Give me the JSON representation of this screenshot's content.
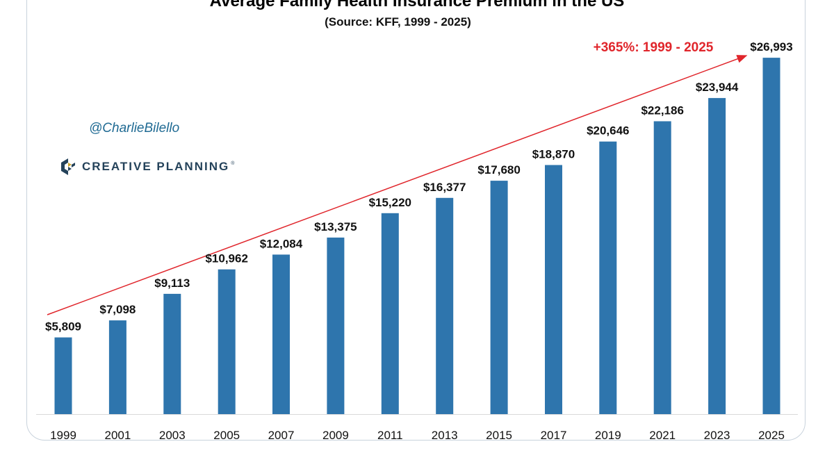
{
  "chart_data": {
    "type": "bar",
    "title": "Average Family Health Insurance Premium in the US",
    "subtitle": "(Source: KFF, 1999 - 2025)",
    "xlabel": "",
    "ylabel": "",
    "categories": [
      "1999",
      "2001",
      "2003",
      "2005",
      "2007",
      "2009",
      "2011",
      "2013",
      "2015",
      "2017",
      "2019",
      "2021",
      "2023",
      "2025"
    ],
    "values": [
      5809,
      7098,
      9113,
      10962,
      12084,
      13375,
      15220,
      16377,
      17680,
      18870,
      20646,
      22186,
      23944,
      26993
    ],
    "data_labels": [
      "$5,809",
      "$7,098",
      "$9,113",
      "$10,962",
      "$12,084",
      "$13,375",
      "$15,220",
      "$16,377",
      "$17,680",
      "$18,870",
      "$20,646",
      "$22,186",
      "$23,944",
      "$26,993"
    ],
    "ylim": [
      0,
      27000
    ],
    "grid": false,
    "legend": "none",
    "bar_color": "#2e75ad",
    "annotation": {
      "text": "+365%: 1999 - 2025",
      "color": "#e0252b",
      "from_category": "1999",
      "to_category": "2025"
    }
  },
  "watermark": {
    "handle": "@CharlieBilello",
    "brand": "CREATIVE PLANNING",
    "handle_color": "#1f6a93",
    "brand_color": "#24425a"
  }
}
